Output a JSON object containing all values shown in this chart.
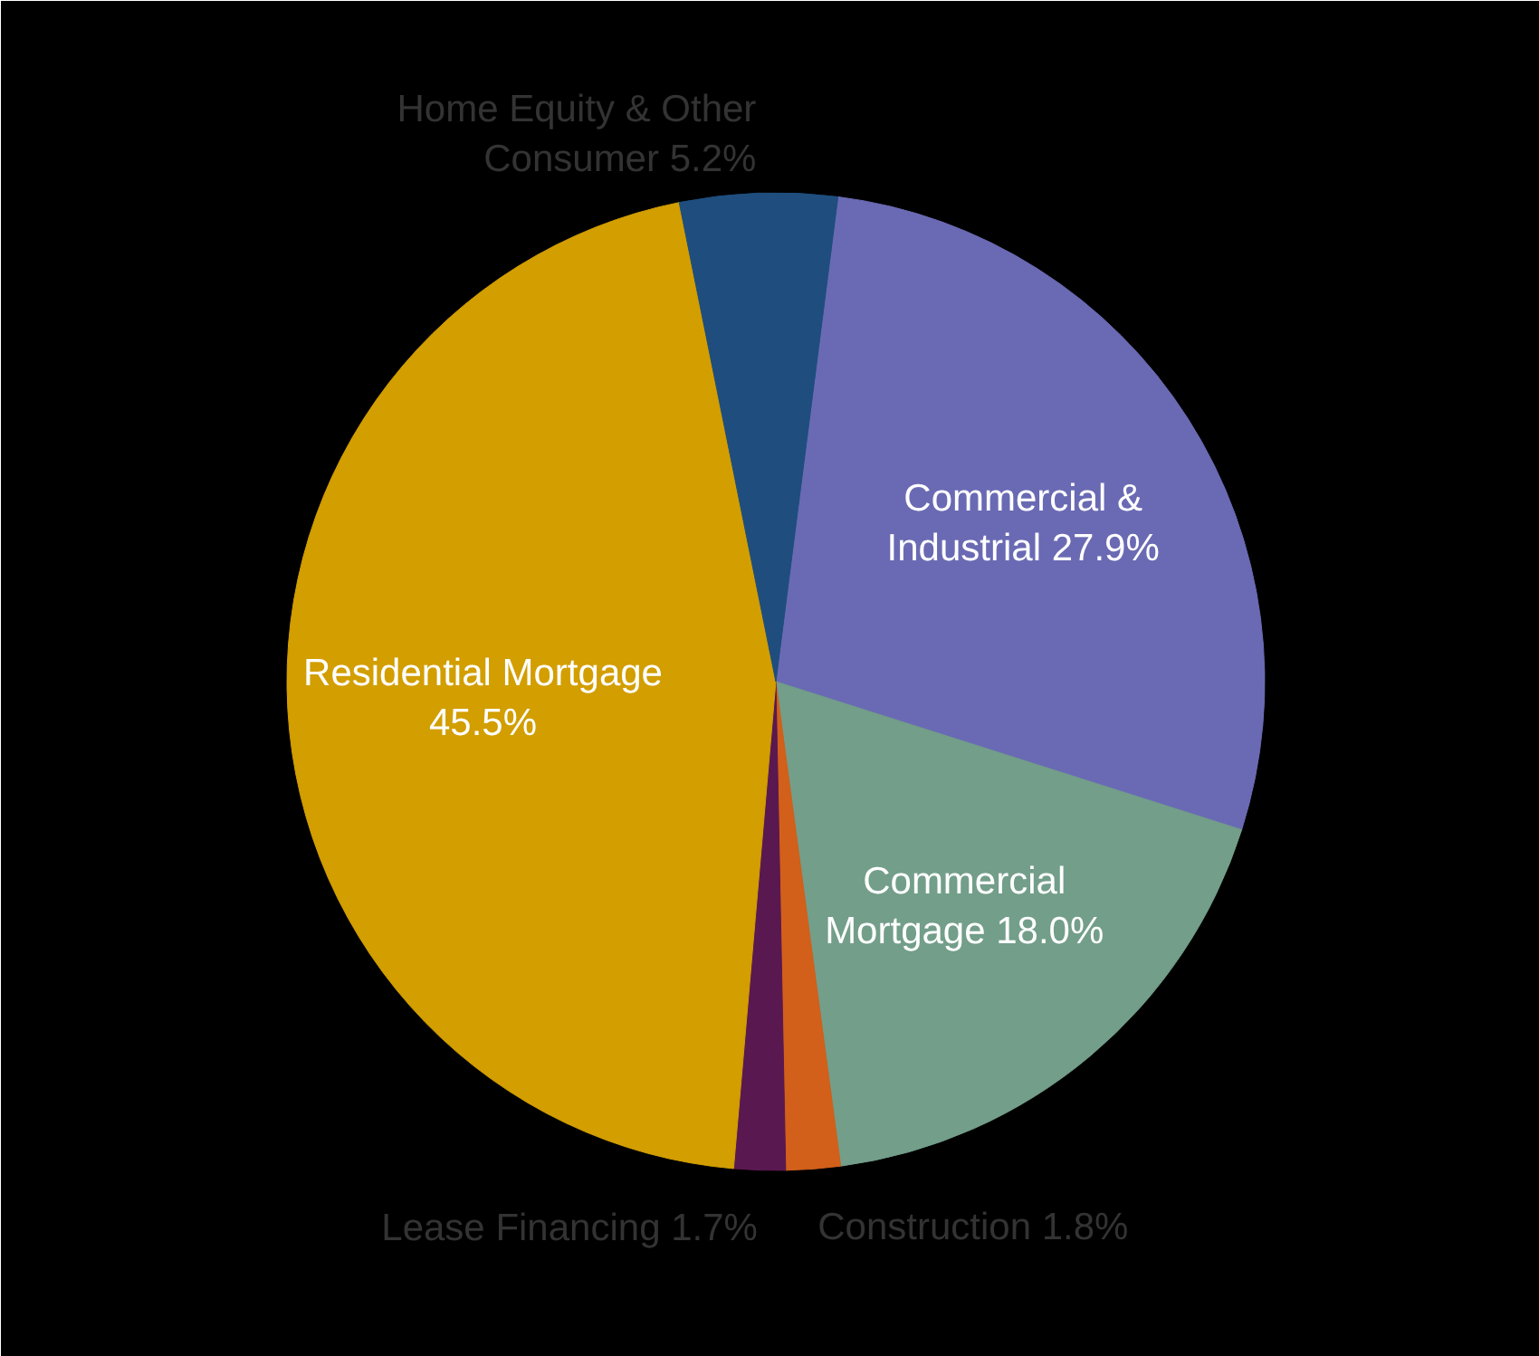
{
  "chart_data": {
    "type": "pie",
    "categories": [
      "Commercial & Industrial",
      "Commercial Mortgage",
      "Construction",
      "Lease Financing",
      "Residential Mortgage",
      "Home Equity & Other Consumer"
    ],
    "values": [
      27.9,
      18.0,
      1.8,
      1.7,
      45.5,
      5.2
    ],
    "value_labels": [
      "27.9%",
      "18.0%",
      "1.8%",
      "1.7%",
      "45.5%",
      "5.2%"
    ],
    "colors": [
      "#6a6ab4",
      "#739e8a",
      "#d2601a",
      "#5a1850",
      "#d29e00",
      "#1f4e7e"
    ]
  }
}
